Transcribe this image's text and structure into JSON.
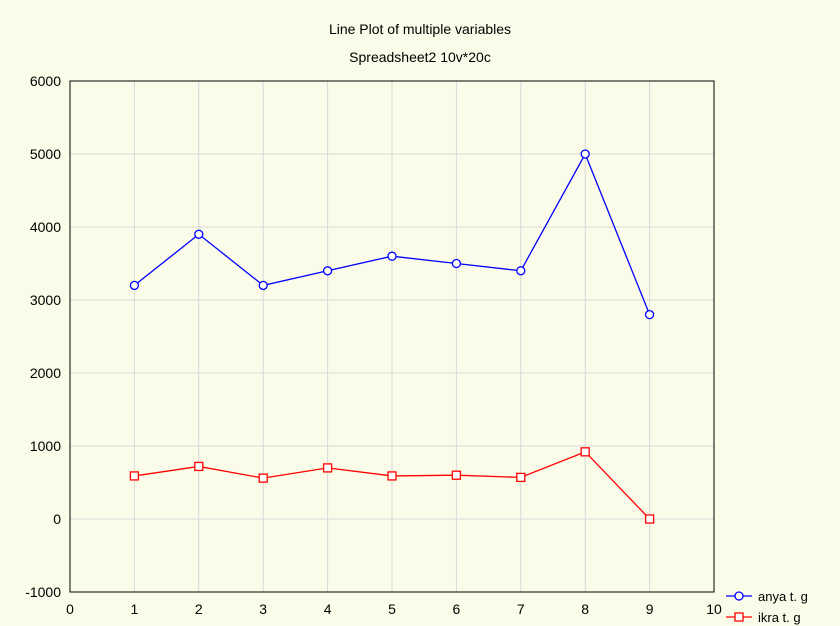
{
  "chart_data": {
    "type": "line",
    "title": "Line Plot of multiple variables",
    "subtitle": "Spreadsheet2 10v*20c",
    "xlim": [
      0,
      10
    ],
    "ylim": [
      -1000,
      6000
    ],
    "xticks": [
      0,
      1,
      2,
      3,
      4,
      5,
      6,
      7,
      8,
      9,
      10
    ],
    "yticks": [
      -1000,
      0,
      1000,
      2000,
      3000,
      4000,
      5000,
      6000
    ],
    "grid": true,
    "legend_position": "bottom-right",
    "x": [
      1,
      2,
      3,
      4,
      5,
      6,
      7,
      8,
      9
    ],
    "series": [
      {
        "name": "anya t. g",
        "color": "#0000ff",
        "marker": "circle",
        "values": [
          3200,
          3900,
          3200,
          3400,
          3600,
          3500,
          3400,
          5000,
          2800
        ]
      },
      {
        "name": "ikra t. g",
        "color": "#ff0000",
        "marker": "square",
        "values": [
          590,
          720,
          560,
          700,
          590,
          600,
          570,
          920,
          0
        ]
      }
    ]
  }
}
